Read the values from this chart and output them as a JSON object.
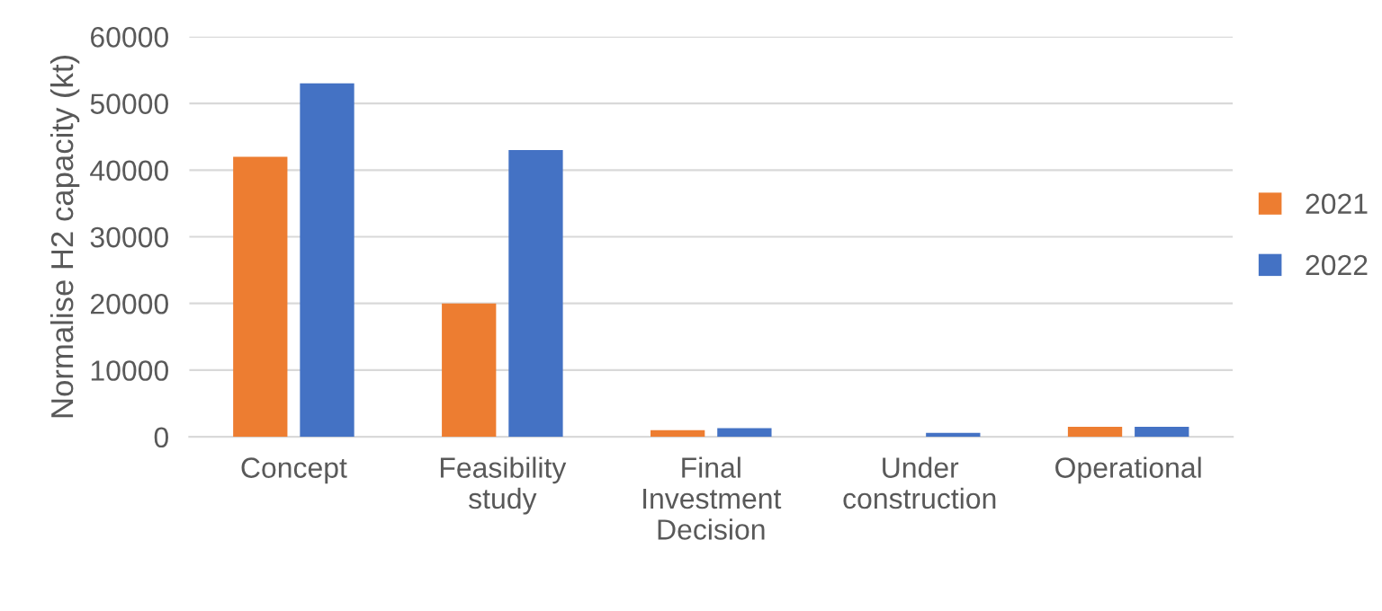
{
  "chart_data": {
    "type": "bar",
    "ylabel": "Normalise H2 capacity (kt)",
    "categories": [
      "Concept",
      "Feasibility\nstudy",
      "Final\nInvestment\nDecision",
      "Under\nconstruction",
      "Operational"
    ],
    "series": [
      {
        "name": "2021",
        "color": "#ed7d31",
        "values": [
          42000,
          20000,
          1000,
          0,
          1500
        ]
      },
      {
        "name": "2022",
        "color": "#4472c4",
        "values": [
          53000,
          43000,
          1300,
          600,
          1500
        ]
      }
    ],
    "ylim": [
      0,
      60000
    ],
    "yticks": [
      0,
      10000,
      20000,
      30000,
      40000,
      50000,
      60000
    ],
    "grid": "y",
    "legend": "right"
  }
}
